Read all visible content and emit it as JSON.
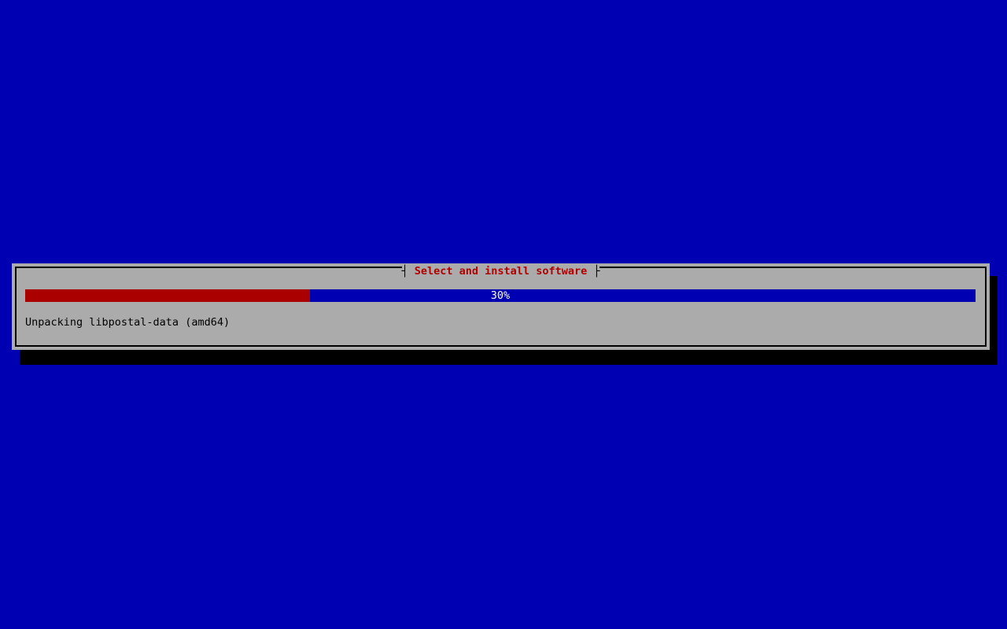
{
  "colors": {
    "screen-blue": "#0000B2",
    "dialog-gray": "#ABABAB",
    "border-black": "#000000",
    "shadow-black": "#000000",
    "title-red": "#B00000",
    "bar-red": "#AA0000",
    "bar-blue": "#0000B2",
    "label-white": "#FFFFFF",
    "text-black": "#000000"
  },
  "dialog": {
    "title_tick_left": "┤ ",
    "title": "Select and install software",
    "title_tick_right": " ├",
    "progress": {
      "percent": 30,
      "label": "30%"
    },
    "status_text": "Unpacking libpostal-data (amd64)"
  }
}
